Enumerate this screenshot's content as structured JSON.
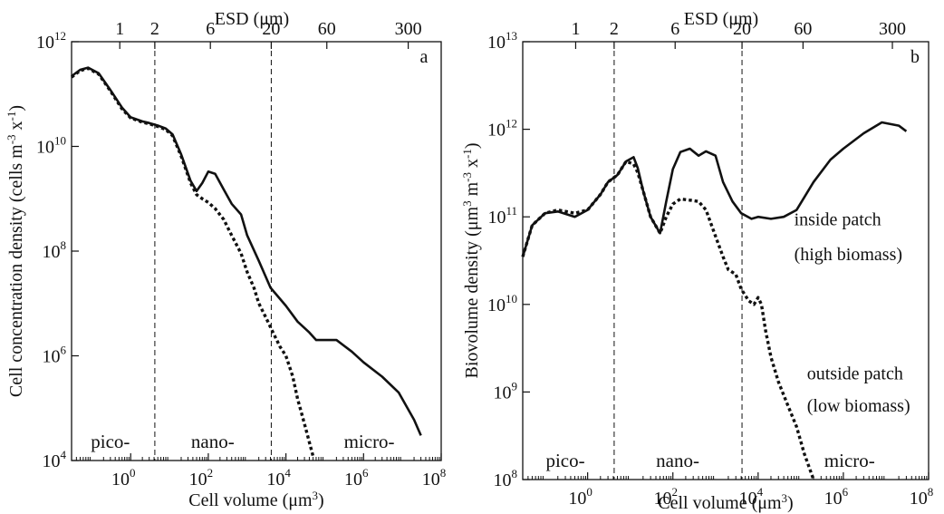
{
  "chart_data": [
    {
      "type": "line",
      "panel_label": "a",
      "xlabel": "Cell volume (μm³)",
      "x2label": "ESD (μm)",
      "ylabel": "Cell concentration density (cells m⁻³ x⁻¹)",
      "x_scale": "log",
      "y_scale": "log",
      "xlim": [
        0.03,
        100000000
      ],
      "ylim": [
        10000,
        1000000000000
      ],
      "x_ticks": [
        {
          "base": "10",
          "exp": "0",
          "value": 1
        },
        {
          "base": "10",
          "exp": "2",
          "value": 100
        },
        {
          "base": "10",
          "exp": "4",
          "value": 10000
        },
        {
          "base": "10",
          "exp": "6",
          "value": 1000000
        },
        {
          "base": "10",
          "exp": "8",
          "value": 100000000
        }
      ],
      "y_ticks": [
        {
          "base": "10",
          "exp": "4",
          "value": 10000
        },
        {
          "base": "10",
          "exp": "6",
          "value": 1000000
        },
        {
          "base": "10",
          "exp": "8",
          "value": 100000000
        },
        {
          "base": "10",
          "exp": "10",
          "value": 10000000000
        },
        {
          "base": "10",
          "exp": "12",
          "value": 1000000000000
        }
      ],
      "top_ticks": [
        {
          "label": "1",
          "value": 0.524
        },
        {
          "label": "2",
          "value": 4.19
        },
        {
          "label": "6",
          "value": 113
        },
        {
          "label": "20",
          "value": 4189
        },
        {
          "label": "60",
          "value": 113097
        },
        {
          "label": "300",
          "value": 14137167
        }
      ],
      "vlines": [
        4.19,
        4189
      ],
      "regions": [
        {
          "label": "pico-",
          "x": 0.3
        },
        {
          "label": "nano-",
          "x": 130
        },
        {
          "label": "micro-",
          "x": 1400000
        }
      ],
      "series": [
        {
          "style": "solid",
          "x": [
            0.03,
            0.05,
            0.08,
            0.15,
            0.3,
            0.6,
            1,
            2,
            3,
            5,
            8,
            12,
            20,
            35,
            50,
            70,
            100,
            150,
            250,
            400,
            700,
            1000,
            2000,
            4000,
            10000,
            20000,
            40000,
            60000,
            100000,
            200000,
            500000,
            1000000,
            3000000,
            8000000,
            20000000,
            30000000
          ],
          "y": [
            220000000000,
            290000000000,
            320000000000,
            250000000000,
            120000000000,
            55000000000,
            36000000000,
            30000000000,
            28000000000,
            25000000000,
            22000000000,
            17000000000,
            7000000000,
            2200000000,
            1400000000,
            2000000000,
            3300000000,
            3000000000,
            1500000000,
            800000000,
            500000000,
            200000000,
            65000000,
            20000000,
            9000000,
            4500000,
            2800000,
            2000000,
            2000000,
            2000000,
            1200000,
            750000,
            400000,
            200000,
            60000,
            30000
          ]
        },
        {
          "style": "dotted",
          "x": [
            0.03,
            0.05,
            0.08,
            0.15,
            0.3,
            0.6,
            1,
            2,
            3,
            5,
            8,
            12,
            20,
            35,
            50,
            70,
            100,
            150,
            250,
            400,
            700,
            1000,
            1500,
            2000,
            3000,
            5000,
            7000,
            10000,
            15000,
            20000,
            30000,
            50000
          ],
          "y": [
            210000000000,
            280000000000,
            310000000000,
            240000000000,
            115000000000,
            52000000000,
            35000000000,
            29000000000,
            27000000000,
            24000000000,
            21000000000,
            16000000000,
            6500000000,
            2000000000,
            1200000000,
            1000000000,
            850000000,
            650000000,
            400000000,
            200000000,
            90000000,
            40000000,
            20000000,
            10000000,
            5500000,
            2500000,
            1500000,
            1000000,
            400000,
            150000,
            50000,
            12000
          ]
        }
      ]
    },
    {
      "type": "line",
      "panel_label": "b",
      "xlabel": "Cell volume (μm³)",
      "x2label": "ESD (μm)",
      "ylabel": "Biovolume density (μm³ m⁻³ x⁻¹)",
      "x_scale": "log",
      "y_scale": "log",
      "xlim": [
        0.03,
        100000000
      ],
      "ylim": [
        100000000,
        10000000000000
      ],
      "x_ticks": [
        {
          "base": "10",
          "exp": "0",
          "value": 1
        },
        {
          "base": "10",
          "exp": "2",
          "value": 100
        },
        {
          "base": "10",
          "exp": "4",
          "value": 10000
        },
        {
          "base": "10",
          "exp": "6",
          "value": 1000000
        },
        {
          "base": "10",
          "exp": "8",
          "value": 100000000
        }
      ],
      "y_ticks": [
        {
          "base": "10",
          "exp": "8",
          "value": 100000000
        },
        {
          "base": "10",
          "exp": "9",
          "value": 1000000000
        },
        {
          "base": "10",
          "exp": "10",
          "value": 10000000000
        },
        {
          "base": "10",
          "exp": "11",
          "value": 100000000000
        },
        {
          "base": "10",
          "exp": "12",
          "value": 1000000000000
        },
        {
          "base": "10",
          "exp": "13",
          "value": 10000000000000
        }
      ],
      "top_ticks": [
        {
          "label": "1",
          "value": 0.524
        },
        {
          "label": "2",
          "value": 4.19
        },
        {
          "label": "6",
          "value": 113
        },
        {
          "label": "20",
          "value": 4189
        },
        {
          "label": "60",
          "value": 113097
        },
        {
          "label": "300",
          "value": 14137167
        }
      ],
      "vlines": [
        4.19,
        4189
      ],
      "regions": [
        {
          "label": "pico-",
          "x": 0.3
        },
        {
          "label": "nano-",
          "x": 130
        },
        {
          "label": "micro-",
          "x": 1400000
        }
      ],
      "annotations": [
        {
          "text": "inside patch",
          "x": 70000,
          "y": 80000000000
        },
        {
          "text": "(high biomass)",
          "x": 70000,
          "y": 32000000000
        },
        {
          "text": "outside patch",
          "x": 140000,
          "y": 1400000000
        },
        {
          "text": "(low biomass)",
          "x": 140000,
          "y": 600000000
        }
      ],
      "series": [
        {
          "name": "inside patch (high biomass)",
          "style": "solid",
          "x": [
            0.03,
            0.05,
            0.1,
            0.2,
            0.5,
            1,
            2,
            3,
            5,
            8,
            12,
            15,
            20,
            30,
            50,
            70,
            100,
            150,
            250,
            400,
            600,
            1000,
            1500,
            2500,
            4000,
            7000,
            10000,
            20000,
            40000,
            80000,
            200000,
            500000,
            1000000,
            3000000,
            8000000,
            20000000,
            30000000
          ],
          "y": [
            35000000000,
            80000000000,
            110000000000,
            115000000000,
            100000000000,
            120000000000,
            180000000000,
            250000000000,
            300000000000,
            430000000000,
            480000000000,
            360000000000,
            200000000000,
            100000000000,
            65000000000,
            150000000000,
            350000000000,
            550000000000,
            600000000000,
            500000000000,
            560000000000,
            500000000000,
            250000000000,
            150000000000,
            110000000000,
            95000000000,
            100000000000,
            95000000000,
            100000000000,
            120000000000,
            250000000000,
            450000000000,
            600000000000,
            900000000000,
            1200000000000,
            1100000000000,
            950000000000
          ]
        },
        {
          "name": "outside patch (low biomass)",
          "style": "dotted",
          "x": [
            0.03,
            0.05,
            0.1,
            0.2,
            0.5,
            1,
            2,
            3,
            5,
            8,
            12,
            15,
            20,
            30,
            50,
            70,
            100,
            150,
            250,
            400,
            600,
            1000,
            1500,
            2000,
            3000,
            4000,
            6000,
            8000,
            10000,
            12000,
            15000,
            20000,
            30000,
            50000,
            80000,
            120000,
            200000
          ],
          "y": [
            35000000000,
            80000000000,
            110000000000,
            120000000000,
            110000000000,
            120000000000,
            180000000000,
            250000000000,
            300000000000,
            430000000000,
            400000000000,
            320000000000,
            200000000000,
            100000000000,
            65000000000,
            100000000000,
            140000000000,
            160000000000,
            155000000000,
            150000000000,
            120000000000,
            60000000000,
            35000000000,
            25000000000,
            22000000000,
            15000000000,
            11000000000,
            10000000000,
            12000000000,
            10000000000,
            5000000000,
            2500000000,
            1300000000,
            700000000,
            400000000,
            200000000,
            100000000
          ]
        }
      ]
    }
  ]
}
